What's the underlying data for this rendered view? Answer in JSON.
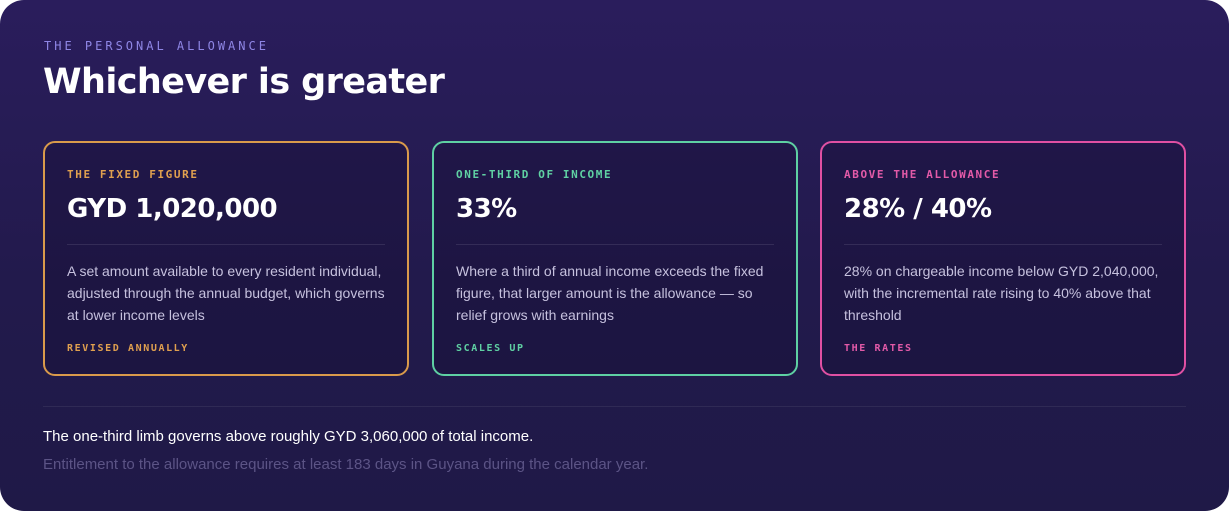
{
  "header": {
    "eyebrow": "THE PERSONAL ALLOWANCE",
    "title": "Whichever is greater"
  },
  "cards": [
    {
      "label": "THE FIXED FIGURE",
      "value": "GYD 1,020,000",
      "description": "A set amount available to every resident individual, adjusted through the annual budget, which governs at lower income levels",
      "footer": "REVISED ANNUALLY",
      "accent": "#e0a04f"
    },
    {
      "label": "ONE-THIRD OF INCOME",
      "value": "33%",
      "description": "Where a third of annual income exceeds the fixed figure, that larger amount is the allowance — so relief grows with earnings",
      "footer": "SCALES UP",
      "accent": "#5fd1a3"
    },
    {
      "label": "ABOVE THE ALLOWANCE",
      "value": "28% / 40%",
      "description": "28% on chargeable income below GYD 2,040,000, with the incremental rate rising to 40% above that threshold",
      "footer": "THE RATES",
      "accent": "#e35aa8"
    }
  ],
  "notes": {
    "primary": "The one-third limb governs above roughly GYD 3,060,000 of total income.",
    "secondary": "Entitlement to the allowance requires at least 183 days in Guyana during the calendar year."
  },
  "colors": {
    "background": "#2a1d5c",
    "eyebrow": "#8f86e6",
    "text": "#ffffff",
    "muted": "#5c5486"
  }
}
